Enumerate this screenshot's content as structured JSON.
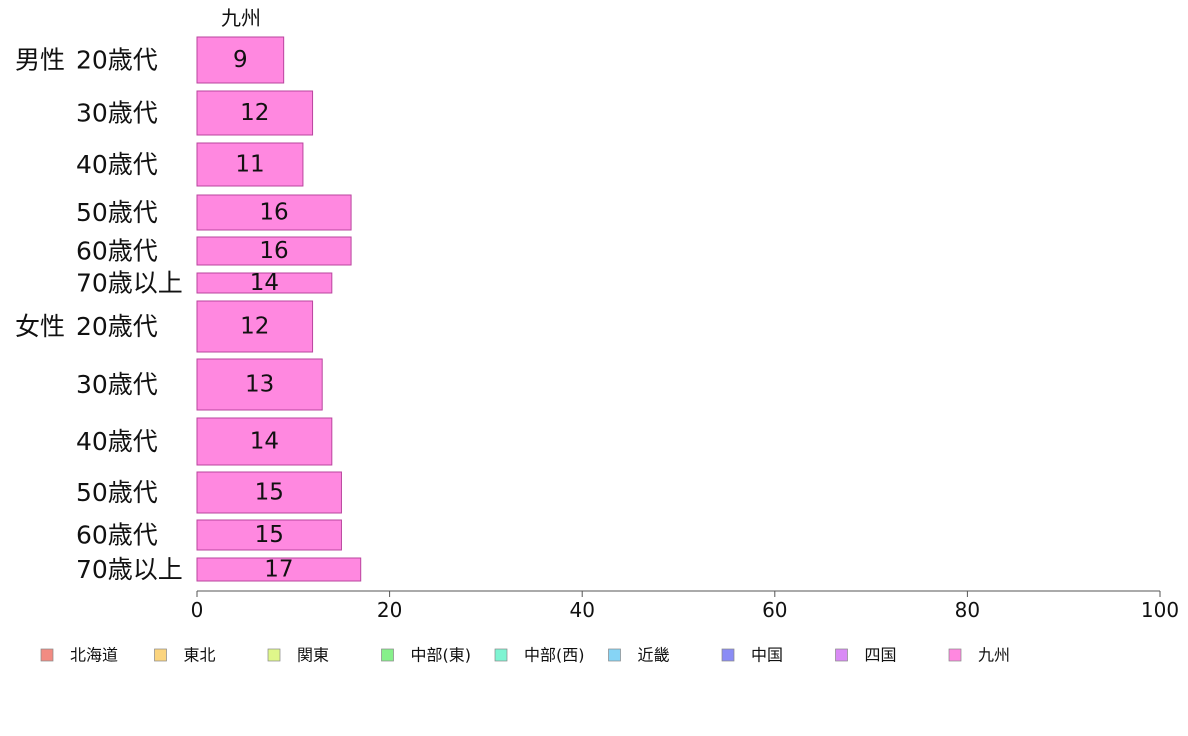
{
  "chart_data": {
    "type": "bar",
    "orientation": "horizontal",
    "column_title": "九州",
    "groups": [
      {
        "label": "男性",
        "categories": [
          "20歳代",
          "30歳代",
          "40歳代",
          "50歳代",
          "60歳代",
          "70歳以上"
        ],
        "values": [
          9,
          12,
          11,
          16,
          16,
          14
        ]
      },
      {
        "label": "女性",
        "categories": [
          "20歳代",
          "30歳代",
          "40歳代",
          "50歳代",
          "60歳代",
          "70歳以上"
        ],
        "values": [
          12,
          13,
          14,
          15,
          15,
          17
        ]
      }
    ],
    "xlim": [
      0,
      100
    ],
    "xticks": [
      0,
      20,
      40,
      60,
      80,
      100
    ],
    "bar_color": "#ff88e0",
    "bar_border": "#b9459e",
    "legend": {
      "position": "bottom",
      "items": [
        {
          "label": "北海道",
          "color": "#f28b82"
        },
        {
          "label": "東北",
          "color": "#fbd47e"
        },
        {
          "label": "関東",
          "color": "#dff78a"
        },
        {
          "label": "中部(東)",
          "color": "#86f08a"
        },
        {
          "label": "中部(西)",
          "color": "#7ef4d2"
        },
        {
          "label": "近畿",
          "color": "#86d4f5"
        },
        {
          "label": "中国",
          "color": "#8a8cf5"
        },
        {
          "label": "四国",
          "color": "#d98af5"
        },
        {
          "label": "九州",
          "color": "#ff88e0"
        }
      ]
    }
  }
}
